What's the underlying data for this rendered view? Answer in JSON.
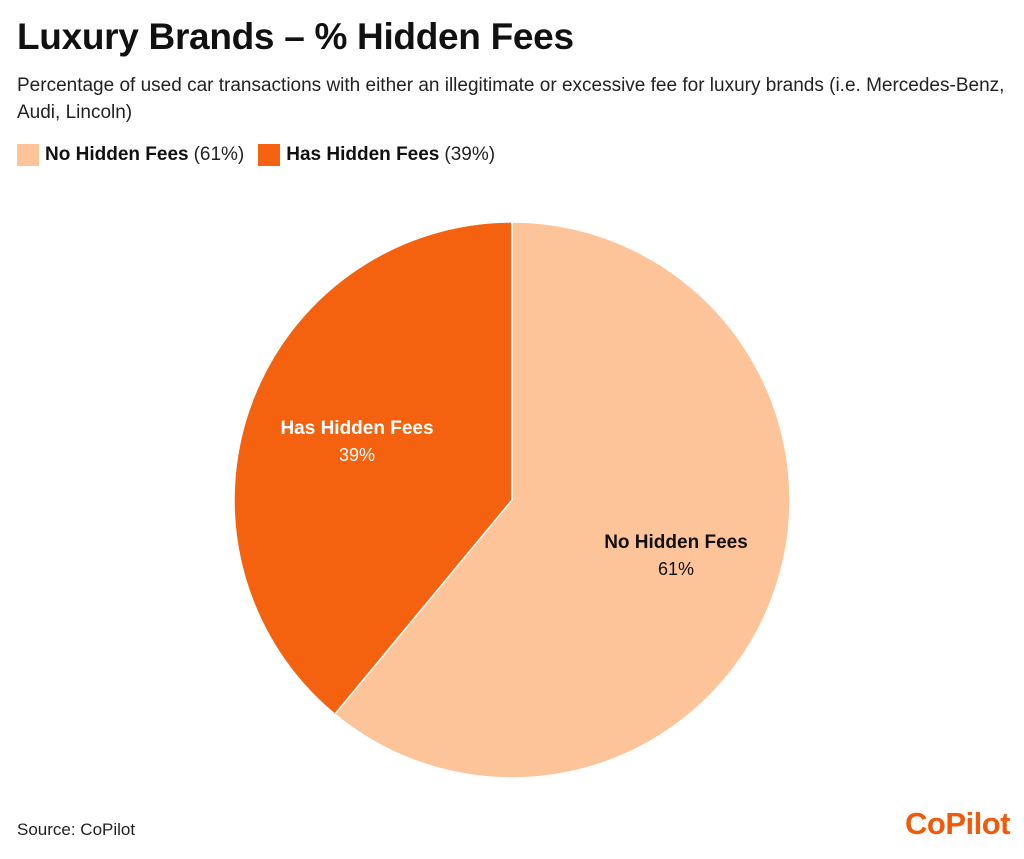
{
  "title": "Luxury Brands – % Hidden Fees",
  "subtitle": "Percentage of used car transactions with either an illegitimate or excessive fee for luxury brands (i.e. Mercedes-Benz, Audi, Lincoln)",
  "legend": [
    {
      "name": "No Hidden Fees",
      "pct": "(61%)"
    },
    {
      "name": "Has Hidden Fees",
      "pct": "(39%)"
    }
  ],
  "chart_data": {
    "type": "pie",
    "title": "Luxury Brands – % Hidden Fees",
    "legend_position": "top-left",
    "slices": [
      {
        "label": "No Hidden Fees",
        "value": 61,
        "value_label": "61%",
        "color": "#fdc49a",
        "label_color": "#111111"
      },
      {
        "label": "Has Hidden Fees",
        "value": 39,
        "value_label": "39%",
        "color": "#f4620f",
        "label_color": "#ffffff"
      }
    ]
  },
  "source": "Source: CoPilot",
  "logo": "CoPilot"
}
